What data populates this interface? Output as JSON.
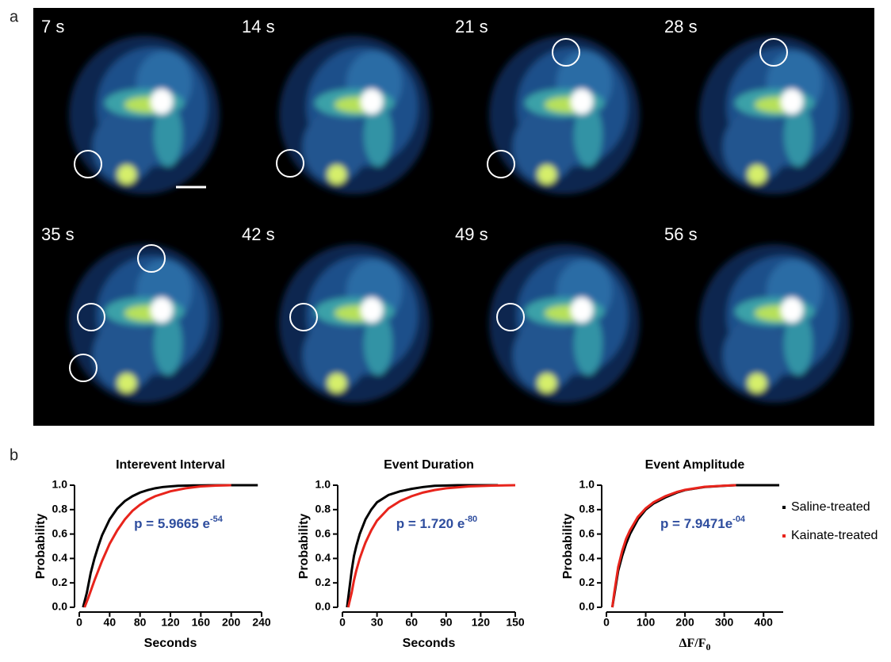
{
  "panel_a": {
    "label": "a",
    "frames": [
      "7 s",
      "14 s",
      "21 s",
      "28 s",
      "35 s",
      "42 s",
      "49 s",
      "56 s"
    ]
  },
  "panel_b": {
    "label": "b"
  },
  "chart_data": [
    {
      "type": "line",
      "title": "Interevent Interval",
      "xlabel": "Seconds",
      "ylabel": "Probability",
      "xlim": [
        0,
        240
      ],
      "xticks": [
        0,
        40,
        80,
        120,
        160,
        200,
        240
      ],
      "ylim": [
        0,
        1
      ],
      "yticks": [
        {
          "value": 0,
          "label": "0.0"
        },
        0.2,
        0.4,
        0.6,
        0.8,
        {
          "value": 1,
          "label": "1.0"
        }
      ],
      "annotation": {
        "text": "p = 5.9665 e",
        "superscript": "-54",
        "color": "#2e4d9e"
      },
      "series": [
        {
          "color": "#000000",
          "x": [
            5,
            10,
            15,
            20,
            25,
            30,
            40,
            50,
            60,
            70,
            80,
            90,
            100,
            110,
            120,
            130,
            150,
            170,
            200,
            235
          ],
          "values": [
            0,
            0.12,
            0.28,
            0.4,
            0.5,
            0.59,
            0.72,
            0.81,
            0.87,
            0.91,
            0.94,
            0.96,
            0.975,
            0.985,
            0.99,
            0.995,
            0.998,
            0.999,
            1,
            1
          ]
        },
        {
          "color": "#e8241c",
          "x": [
            7,
            12,
            20,
            30,
            40,
            50,
            60,
            70,
            80,
            90,
            100,
            120,
            140,
            160,
            180,
            200
          ],
          "values": [
            0,
            0.08,
            0.22,
            0.38,
            0.52,
            0.63,
            0.72,
            0.79,
            0.84,
            0.88,
            0.91,
            0.95,
            0.975,
            0.99,
            0.997,
            1
          ]
        }
      ]
    },
    {
      "type": "line",
      "title": "Event Duration",
      "xlabel": "Seconds",
      "ylabel": "Probability",
      "xlim": [
        0,
        150
      ],
      "xticks": [
        0,
        30,
        60,
        90,
        120,
        150
      ],
      "ylim": [
        0,
        1
      ],
      "yticks": [
        {
          "value": 0,
          "label": "0.0"
        },
        0.2,
        0.4,
        0.6,
        0.8,
        {
          "value": 1,
          "label": "1.0"
        }
      ],
      "annotation": {
        "text": "p = 1.720 e",
        "superscript": "-80",
        "color": "#2e4d9e"
      },
      "series": [
        {
          "color": "#000000",
          "x": [
            4,
            6,
            8,
            10,
            12,
            15,
            20,
            25,
            30,
            40,
            50,
            60,
            70,
            80,
            100,
            135
          ],
          "values": [
            0,
            0.15,
            0.3,
            0.42,
            0.5,
            0.6,
            0.72,
            0.8,
            0.86,
            0.92,
            0.95,
            0.97,
            0.985,
            0.995,
            1,
            1
          ]
        },
        {
          "color": "#e8241c",
          "x": [
            5,
            8,
            10,
            12,
            15,
            18,
            20,
            25,
            30,
            40,
            50,
            60,
            70,
            80,
            90,
            110,
            130,
            150
          ],
          "values": [
            0,
            0.12,
            0.22,
            0.3,
            0.4,
            0.48,
            0.53,
            0.63,
            0.71,
            0.81,
            0.87,
            0.91,
            0.94,
            0.96,
            0.975,
            0.99,
            0.997,
            1
          ]
        }
      ]
    },
    {
      "type": "line",
      "title": "Event Amplitude",
      "xlabel": "ΔF/F",
      "xlabel_subscript": "0",
      "ylabel": "Probability",
      "xlim": [
        0,
        450
      ],
      "xticks": [
        0,
        100,
        200,
        300,
        400
      ],
      "ylim": [
        0,
        1
      ],
      "yticks": [
        {
          "value": 0,
          "label": "0.0"
        },
        0.2,
        0.4,
        0.6,
        0.8,
        {
          "value": 1,
          "label": "1.0"
        }
      ],
      "annotation": {
        "text": "p = 7.9471e",
        "superscript": "-04",
        "color": "#2e4d9e"
      },
      "legend": "right",
      "series": [
        {
          "name": "Saline-treated",
          "color": "#000000",
          "x": [
            15,
            20,
            30,
            40,
            50,
            60,
            80,
            100,
            120,
            150,
            180,
            200,
            250,
            300,
            330,
            380,
            440
          ],
          "values": [
            0,
            0.1,
            0.3,
            0.42,
            0.52,
            0.6,
            0.72,
            0.8,
            0.85,
            0.9,
            0.94,
            0.96,
            0.985,
            0.995,
            1,
            1,
            1
          ]
        },
        {
          "name": "Kainate-treated",
          "color": "#e8241c",
          "x": [
            15,
            20,
            30,
            40,
            50,
            60,
            80,
            100,
            120,
            150,
            180,
            200,
            250,
            300,
            330
          ],
          "values": [
            0,
            0.12,
            0.33,
            0.46,
            0.56,
            0.63,
            0.74,
            0.81,
            0.86,
            0.91,
            0.945,
            0.962,
            0.987,
            0.996,
            1
          ]
        }
      ]
    }
  ]
}
